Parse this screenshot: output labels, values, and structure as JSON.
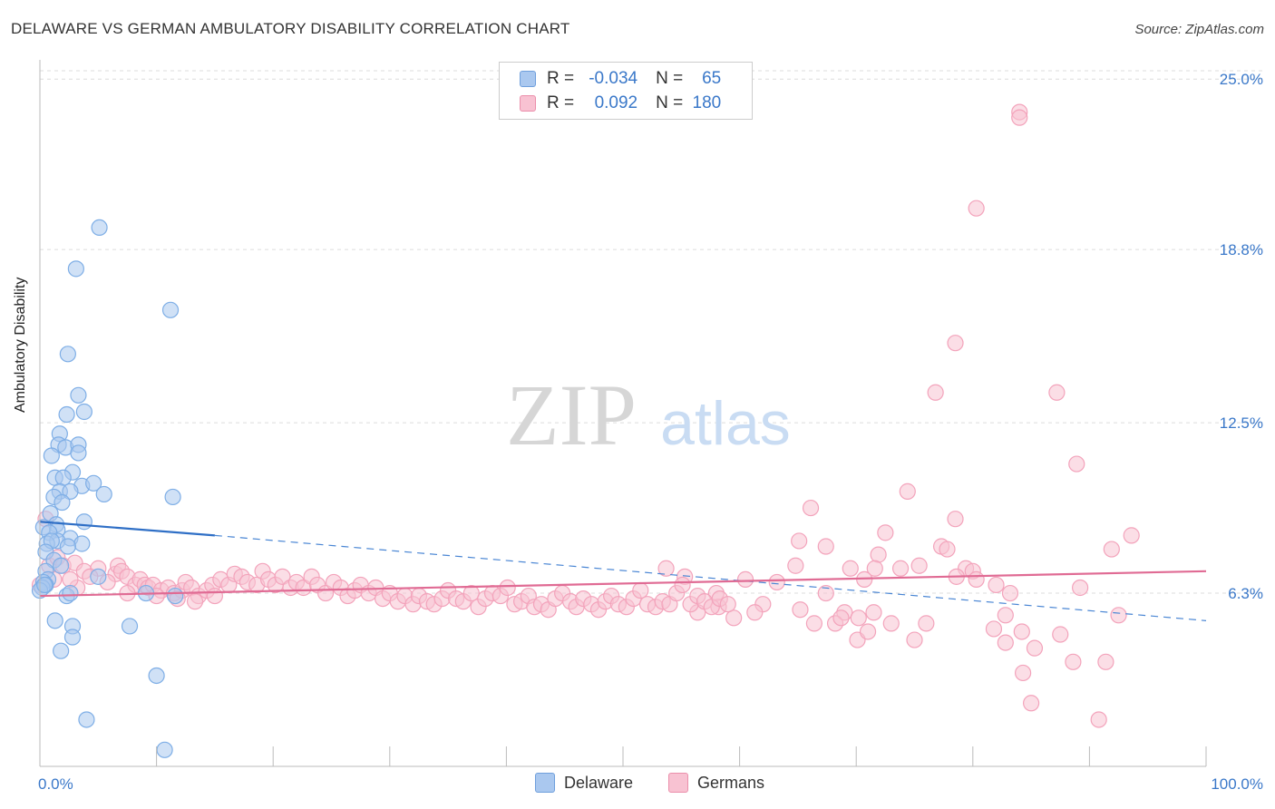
{
  "header": {
    "title": "DELAWARE VS GERMAN AMBULATORY DISABILITY CORRELATION CHART",
    "source": "Source: ZipAtlas.com"
  },
  "watermark": {
    "zip": "ZIP",
    "atlas": "atlas"
  },
  "legend_top": {
    "r_label": "R =",
    "n_label": "N =",
    "rows": [
      {
        "r": "-0.034",
        "n": "65"
      },
      {
        "r": "0.092",
        "n": "180"
      }
    ]
  },
  "chart_data": {
    "type": "scatter",
    "title": "DELAWARE VS GERMAN AMBULATORY DISABILITY CORRELATION CHART",
    "xlabel": "",
    "ylabel": "Ambulatory Disability",
    "xlim": [
      0,
      100
    ],
    "ylim": [
      0,
      25.7
    ],
    "x_tick_labels": [
      "0.0%",
      "100.0%"
    ],
    "y_ticks": [
      6.3,
      12.5,
      18.8,
      25.0
    ],
    "y_tick_labels": [
      "6.3%",
      "12.5%",
      "18.8%",
      "25.0%"
    ],
    "grid": "horizontal dashed",
    "legend_position": "top-center",
    "series": [
      {
        "name": "Delaware",
        "color": "#7eaee6",
        "fill": "#aac8ef",
        "r": -0.034,
        "n": 65,
        "trend": {
          "x": [
            0,
            15
          ],
          "y": [
            8.9,
            8.4
          ],
          "extend_to_x": 100,
          "extend_to_y": 5.3
        },
        "points": [
          [
            5.1,
            19.6
          ],
          [
            3.1,
            18.1
          ],
          [
            11.2,
            16.6
          ],
          [
            2.4,
            15.0
          ],
          [
            3.3,
            13.5
          ],
          [
            3.8,
            12.9
          ],
          [
            2.3,
            12.8
          ],
          [
            1.7,
            12.1
          ],
          [
            1.6,
            11.7
          ],
          [
            2.2,
            11.6
          ],
          [
            3.3,
            11.7
          ],
          [
            3.3,
            11.4
          ],
          [
            1.0,
            11.3
          ],
          [
            2.8,
            10.7
          ],
          [
            1.3,
            10.5
          ],
          [
            2.0,
            10.5
          ],
          [
            3.6,
            10.2
          ],
          [
            4.6,
            10.3
          ],
          [
            1.7,
            10.0
          ],
          [
            2.6,
            10.0
          ],
          [
            5.5,
            9.9
          ],
          [
            1.2,
            9.8
          ],
          [
            1.9,
            9.6
          ],
          [
            11.4,
            9.8
          ],
          [
            0.9,
            9.2
          ],
          [
            3.8,
            8.9
          ],
          [
            1.4,
            8.8
          ],
          [
            0.3,
            8.7
          ],
          [
            1.5,
            8.6
          ],
          [
            0.8,
            8.5
          ],
          [
            2.6,
            8.3
          ],
          [
            1.5,
            8.2
          ],
          [
            0.6,
            8.1
          ],
          [
            1.0,
            8.2
          ],
          [
            3.6,
            8.1
          ],
          [
            2.4,
            8.0
          ],
          [
            0.5,
            7.8
          ],
          [
            1.2,
            7.5
          ],
          [
            1.8,
            7.3
          ],
          [
            0.5,
            7.1
          ],
          [
            5.0,
            6.9
          ],
          [
            0.7,
            6.8
          ],
          [
            0.3,
            6.7
          ],
          [
            0.5,
            6.6
          ],
          [
            0.2,
            6.5
          ],
          [
            0.0,
            6.4
          ],
          [
            0.4,
            6.6
          ],
          [
            9.1,
            6.3
          ],
          [
            11.6,
            6.2
          ],
          [
            2.3,
            6.2
          ],
          [
            2.6,
            6.3
          ],
          [
            1.3,
            5.3
          ],
          [
            7.7,
            5.1
          ],
          [
            2.8,
            5.1
          ],
          [
            2.8,
            4.7
          ],
          [
            1.8,
            4.2
          ],
          [
            10.0,
            3.3
          ],
          [
            4.0,
            1.7
          ],
          [
            10.7,
            0.6
          ]
        ]
      },
      {
        "name": "Germans",
        "color": "#f3a3bb",
        "fill": "#f8c2d2",
        "r": 0.092,
        "n": 180,
        "trend": {
          "x": [
            0,
            100
          ],
          "y": [
            6.2,
            7.1
          ]
        },
        "points": [
          [
            84.0,
            23.8
          ],
          [
            84.0,
            23.6
          ],
          [
            80.3,
            20.3
          ],
          [
            78.5,
            15.4
          ],
          [
            76.8,
            13.6
          ],
          [
            87.2,
            13.6
          ],
          [
            88.9,
            11.0
          ],
          [
            74.4,
            10.0
          ],
          [
            66.1,
            9.4
          ],
          [
            78.5,
            9.0
          ],
          [
            93.6,
            8.4
          ],
          [
            72.5,
            8.5
          ],
          [
            65.1,
            8.2
          ],
          [
            67.4,
            8.0
          ],
          [
            77.3,
            8.0
          ],
          [
            77.8,
            7.9
          ],
          [
            91.9,
            7.9
          ],
          [
            71.9,
            7.7
          ],
          [
            64.8,
            7.3
          ],
          [
            69.5,
            7.2
          ],
          [
            71.6,
            7.2
          ],
          [
            73.8,
            7.2
          ],
          [
            75.4,
            7.3
          ],
          [
            79.4,
            7.2
          ],
          [
            80.0,
            7.1
          ],
          [
            78.6,
            6.9
          ],
          [
            80.3,
            6.8
          ],
          [
            82.0,
            6.6
          ],
          [
            83.2,
            6.3
          ],
          [
            89.2,
            6.5
          ],
          [
            70.7,
            6.8
          ],
          [
            67.4,
            6.3
          ],
          [
            63.2,
            6.7
          ],
          [
            55.3,
            6.9
          ],
          [
            53.7,
            7.2
          ],
          [
            60.5,
            6.8
          ],
          [
            58.0,
            6.3
          ],
          [
            62.0,
            5.9
          ],
          [
            58.2,
            5.8
          ],
          [
            61.3,
            5.6
          ],
          [
            56.4,
            5.6
          ],
          [
            59.5,
            5.4
          ],
          [
            65.2,
            5.7
          ],
          [
            69.0,
            5.6
          ],
          [
            71.5,
            5.6
          ],
          [
            73.0,
            5.2
          ],
          [
            66.4,
            5.2
          ],
          [
            68.2,
            5.2
          ],
          [
            70.2,
            5.4
          ],
          [
            68.7,
            5.4
          ],
          [
            76.0,
            5.2
          ],
          [
            81.8,
            5.0
          ],
          [
            82.8,
            5.5
          ],
          [
            84.2,
            4.9
          ],
          [
            87.5,
            4.8
          ],
          [
            92.5,
            5.5
          ],
          [
            70.1,
            4.6
          ],
          [
            75.0,
            4.6
          ],
          [
            82.8,
            4.5
          ],
          [
            85.3,
            4.3
          ],
          [
            84.3,
            3.4
          ],
          [
            88.6,
            3.8
          ],
          [
            91.4,
            3.8
          ],
          [
            85.0,
            2.3
          ],
          [
            90.8,
            1.7
          ],
          [
            71.0,
            4.9
          ],
          [
            0.5,
            9.0
          ],
          [
            0.8,
            7.3
          ],
          [
            1.5,
            7.6
          ],
          [
            2.0,
            7.3
          ],
          [
            3.0,
            7.4
          ],
          [
            3.8,
            7.1
          ],
          [
            5.0,
            7.2
          ],
          [
            6.5,
            7.0
          ],
          [
            6.7,
            7.3
          ],
          [
            7.0,
            7.1
          ],
          [
            7.5,
            6.9
          ],
          [
            8.2,
            6.6
          ],
          [
            8.6,
            6.8
          ],
          [
            9.0,
            6.6
          ],
          [
            9.3,
            6.5
          ],
          [
            9.7,
            6.6
          ],
          [
            10.4,
            6.4
          ],
          [
            11.0,
            6.5
          ],
          [
            11.5,
            6.3
          ],
          [
            12.2,
            6.4
          ],
          [
            12.5,
            6.7
          ],
          [
            13.0,
            6.5
          ],
          [
            13.6,
            6.2
          ],
          [
            14.3,
            6.4
          ],
          [
            14.8,
            6.6
          ],
          [
            15.5,
            6.8
          ],
          [
            16.2,
            6.6
          ],
          [
            16.7,
            7.0
          ],
          [
            17.3,
            6.9
          ],
          [
            17.8,
            6.7
          ],
          [
            18.6,
            6.6
          ],
          [
            19.1,
            7.1
          ],
          [
            19.6,
            6.8
          ],
          [
            20.2,
            6.6
          ],
          [
            20.8,
            6.9
          ],
          [
            21.5,
            6.5
          ],
          [
            22.0,
            6.7
          ],
          [
            22.6,
            6.5
          ],
          [
            23.3,
            6.9
          ],
          [
            23.8,
            6.6
          ],
          [
            24.5,
            6.3
          ],
          [
            25.2,
            6.7
          ],
          [
            25.8,
            6.5
          ],
          [
            26.4,
            6.2
          ],
          [
            27.0,
            6.4
          ],
          [
            27.5,
            6.6
          ],
          [
            28.2,
            6.3
          ],
          [
            28.8,
            6.5
          ],
          [
            29.4,
            6.1
          ],
          [
            30.0,
            6.3
          ],
          [
            30.7,
            6.0
          ],
          [
            31.3,
            6.2
          ],
          [
            32.0,
            5.9
          ],
          [
            32.5,
            6.2
          ],
          [
            33.2,
            6.0
          ],
          [
            33.8,
            5.9
          ],
          [
            34.5,
            6.1
          ],
          [
            35.0,
            6.4
          ],
          [
            35.7,
            6.1
          ],
          [
            36.3,
            6.0
          ],
          [
            37.0,
            6.3
          ],
          [
            37.6,
            5.8
          ],
          [
            38.2,
            6.1
          ],
          [
            38.8,
            6.3
          ],
          [
            39.5,
            6.2
          ],
          [
            40.1,
            6.5
          ],
          [
            40.7,
            5.9
          ],
          [
            41.3,
            6.0
          ],
          [
            41.9,
            6.2
          ],
          [
            42.4,
            5.8
          ],
          [
            43.0,
            5.9
          ],
          [
            43.6,
            5.7
          ],
          [
            44.2,
            6.1
          ],
          [
            44.8,
            6.3
          ],
          [
            45.5,
            6.0
          ],
          [
            46.0,
            5.8
          ],
          [
            46.6,
            6.1
          ],
          [
            47.3,
            5.9
          ],
          [
            47.9,
            5.7
          ],
          [
            48.5,
            6.0
          ],
          [
            49.0,
            6.2
          ],
          [
            49.6,
            5.9
          ],
          [
            50.3,
            5.8
          ],
          [
            50.9,
            6.1
          ],
          [
            51.5,
            6.4
          ],
          [
            52.1,
            5.9
          ],
          [
            52.8,
            5.8
          ],
          [
            53.4,
            6.0
          ],
          [
            54.0,
            5.9
          ],
          [
            54.6,
            6.3
          ],
          [
            55.1,
            6.6
          ],
          [
            55.8,
            5.9
          ],
          [
            56.4,
            6.2
          ],
          [
            57.0,
            6.0
          ],
          [
            57.6,
            5.8
          ],
          [
            58.3,
            6.1
          ],
          [
            59.0,
            5.9
          ],
          [
            15.0,
            6.2
          ],
          [
            11.8,
            6.1
          ],
          [
            13.3,
            6.0
          ],
          [
            10.0,
            6.2
          ],
          [
            5.8,
            6.7
          ],
          [
            4.3,
            6.9
          ],
          [
            3.2,
            6.5
          ],
          [
            2.6,
            6.8
          ],
          [
            1.2,
            6.8
          ],
          [
            0.0,
            6.6
          ],
          [
            7.5,
            6.3
          ]
        ]
      }
    ]
  },
  "bottom_legend": {
    "items": [
      "Delaware",
      "Germans"
    ]
  }
}
